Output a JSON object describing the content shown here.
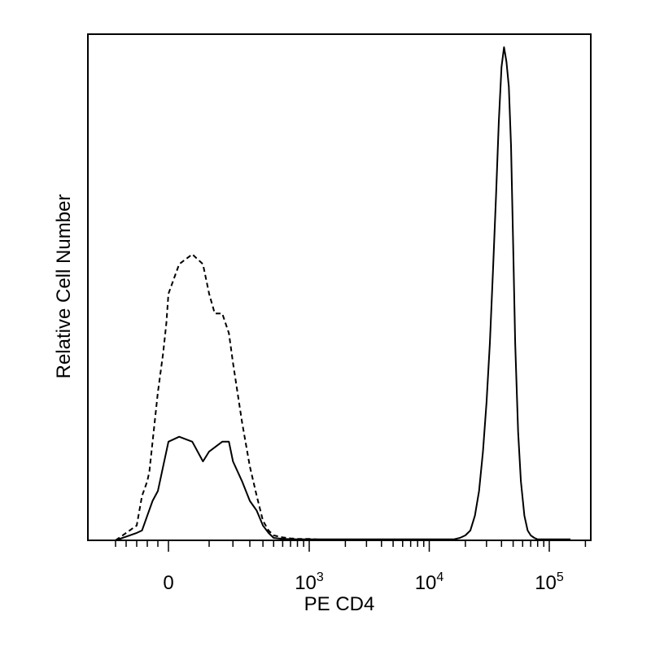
{
  "chart_data": {
    "type": "area",
    "title": "",
    "xlabel": "PE CD4",
    "ylabel": "Relative Cell Number",
    "xscale": "biexponential",
    "xticks": [
      {
        "value": 0,
        "base": "0",
        "exp": ""
      },
      {
        "value": 1000,
        "base": "10",
        "exp": "3"
      },
      {
        "value": 10000,
        "base": "10",
        "exp": "4"
      },
      {
        "value": 100000,
        "base": "10",
        "exp": "5"
      }
    ],
    "ylim": [
      0,
      100
    ],
    "grid": false,
    "legend": "none",
    "series": [
      {
        "style": "dashed",
        "x": [
          -500,
          -300,
          -250,
          -200,
          -180,
          -150,
          -100,
          -50,
          -20,
          0,
          20,
          50,
          80,
          100,
          120,
          150,
          180,
          200,
          250,
          300,
          350,
          400,
          450,
          500,
          600,
          700,
          800,
          1000,
          1500,
          2000
        ],
        "y": [
          0,
          3,
          9,
          12,
          14,
          20,
          30,
          38,
          44,
          50,
          56,
          58,
          56,
          50,
          46,
          46,
          42,
          36,
          24,
          15,
          9,
          4,
          2,
          1,
          0.6,
          0.4,
          0.3,
          0.3,
          0,
          0
        ]
      },
      {
        "style": "solid",
        "x": [
          -500,
          -300,
          -250,
          -200,
          -150,
          -100,
          -50,
          0,
          20,
          50,
          80,
          100,
          150,
          180,
          200,
          250,
          300,
          350,
          400,
          450,
          500,
          600,
          800,
          1000,
          1500,
          2000,
          3000,
          5000,
          8000,
          12000,
          16000,
          18000,
          20000,
          22000,
          24000,
          26000,
          28000,
          30000,
          32000,
          34000,
          36000,
          38000,
          40000,
          42000,
          44000,
          46000,
          48000,
          50000,
          52000,
          55000,
          58000,
          62000,
          66000,
          70000,
          75000,
          80000,
          90000,
          100000,
          150000
        ],
        "y": [
          0,
          1.5,
          2,
          5,
          8,
          10,
          15,
          20,
          21,
          20,
          16,
          18,
          20,
          20,
          16,
          12,
          8,
          6,
          3,
          1.5,
          0.5,
          0.3,
          0.2,
          0.2,
          0.2,
          0.2,
          0.2,
          0.2,
          0.2,
          0.2,
          0.2,
          0.5,
          1,
          2,
          5,
          10,
          18,
          28,
          40,
          55,
          70,
          85,
          96,
          100,
          97,
          92,
          80,
          60,
          40,
          22,
          12,
          5,
          2,
          1,
          0.5,
          0.2,
          0.2,
          0.2,
          0.2
        ]
      }
    ]
  }
}
